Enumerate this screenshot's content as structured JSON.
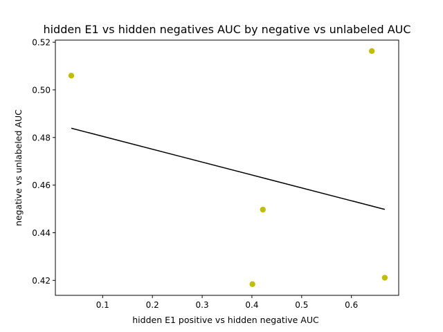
{
  "chart_data": {
    "type": "scatter",
    "title": "hidden E1 vs hidden negatives AUC by negative vs unlabeled AUC",
    "xlabel": "hidden E1 positive vs hidden negative  AUC",
    "ylabel": "negative vs unlabeled AUC",
    "xlim": [
      0.005,
      0.695
    ],
    "ylim": [
      0.4137,
      0.5209
    ],
    "x_ticks": [
      0.1,
      0.2,
      0.3,
      0.4,
      0.5,
      0.6
    ],
    "x_tick_labels": [
      "0.1",
      "0.2",
      "0.3",
      "0.4",
      "0.5",
      "0.6"
    ],
    "y_ticks": [
      0.42,
      0.44,
      0.46,
      0.48,
      0.5,
      0.52
    ],
    "y_tick_labels": [
      "0.42",
      "0.44",
      "0.46",
      "0.48",
      "0.50",
      "0.52"
    ],
    "grid": false,
    "series": [
      {
        "kind": "points",
        "color": "#bfbf00",
        "x": [
          0.037,
          0.641,
          0.422,
          0.401,
          0.667
        ],
        "y": [
          0.506,
          0.5163,
          0.4497,
          0.4184,
          0.4211
        ]
      },
      {
        "kind": "fit-line",
        "color": "#000000",
        "x": [
          0.037,
          0.667
        ],
        "y": [
          0.4839,
          0.4498
        ]
      }
    ]
  }
}
